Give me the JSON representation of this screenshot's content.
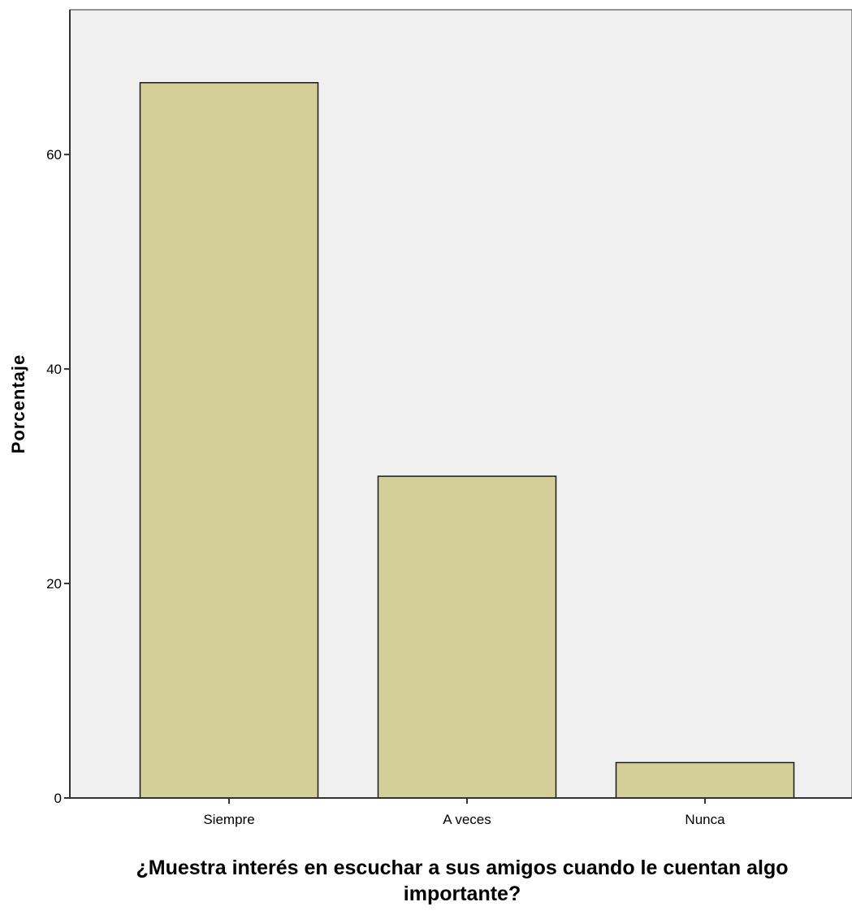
{
  "chart_data": {
    "type": "bar",
    "categories": [
      "Siempre",
      "A veces",
      "Nunca"
    ],
    "values": [
      66.7,
      30.0,
      3.3
    ],
    "xlabel_lines": [
      "¿Muestra interés en escuchar a sus amigos cuando le cuentan algo",
      "importante?"
    ],
    "ylabel": "Porcentaje",
    "ylim": [
      0,
      73.5
    ],
    "yticks": [
      0,
      20,
      40,
      60
    ],
    "colors": {
      "bar_fill": "#d4cf98",
      "bar_stroke": "#1a1a1a",
      "plot_background": "#f0f0f0",
      "axis": "#333333"
    },
    "grid": false,
    "legend": "none"
  }
}
